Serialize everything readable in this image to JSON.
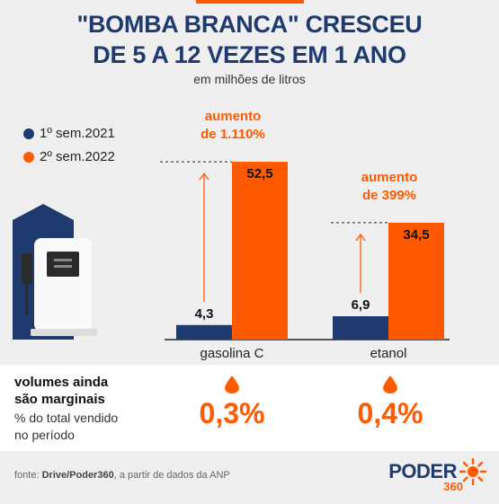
{
  "header": {
    "title_line1": "\"BOMBA BRANCA\" CRESCEU",
    "title_line2": "DE 5 A 12 VEZES EM 1 ANO",
    "subtitle": "em milhões de litros"
  },
  "colors": {
    "navy": "#1f3a6f",
    "orange": "#ff5a00"
  },
  "chart_data": {
    "type": "bar",
    "categories": [
      "gasolina C",
      "etanol"
    ],
    "series": [
      {
        "name": "1º sem.2021",
        "values": [
          4.3,
          6.9
        ],
        "color": "#1f3a6f"
      },
      {
        "name": "2º sem.2022",
        "values": [
          52.5,
          34.5
        ],
        "color": "#ff5a00"
      }
    ],
    "value_labels": [
      [
        "4,3",
        "52,5"
      ],
      [
        "6,9",
        "34,5"
      ]
    ],
    "annotations": [
      {
        "line1": "aumento",
        "line2": "de 1.110%"
      },
      {
        "line1": "aumento",
        "line2": "de 399%"
      }
    ],
    "legend_position": "left",
    "grid": false
  },
  "share_panel": {
    "heading_line1": "volumes ainda",
    "heading_line2": "são marginais",
    "sub_line1": "% do total vendido",
    "sub_line2": "no período",
    "values": [
      "0,3%",
      "0,4%"
    ]
  },
  "footer": {
    "source_label": "fonte:",
    "source_bold": "Drive/Poder360",
    "source_rest": ", a partir de dados da ANP",
    "logo_word": "PODER",
    "logo_num": "360"
  },
  "icons": {
    "pump": "fuel-pump-icon",
    "drop": "drop-icon",
    "sun": "sunburst-icon"
  }
}
